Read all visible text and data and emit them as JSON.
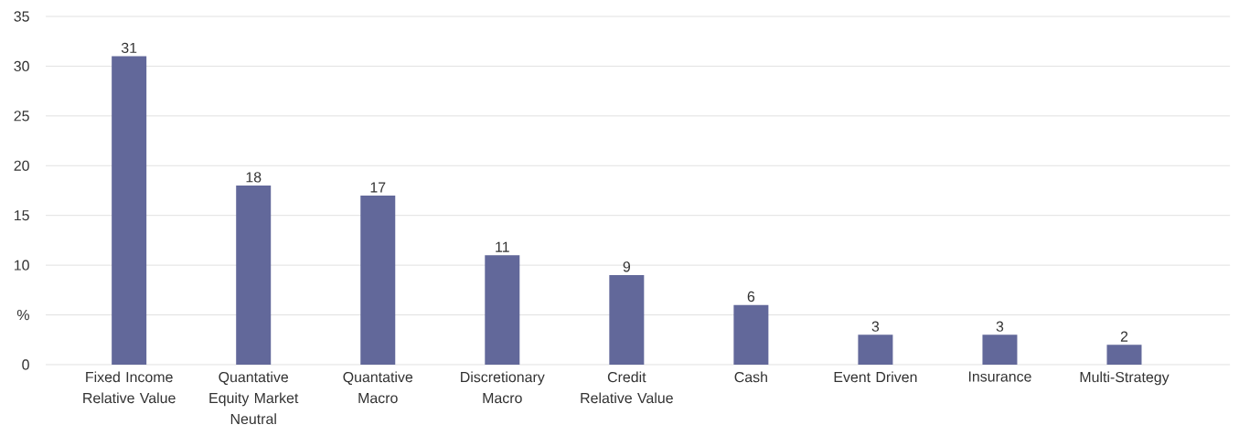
{
  "chart_data": {
    "type": "bar",
    "categories": [
      "Fixed Income Relative Value",
      "Quantative Equity Market Neutral",
      "Quantative Macro",
      "Discretionary Macro",
      "Credit Relative Value",
      "Cash",
      "Event Driven",
      "Insurance",
      "Multi-Strategy"
    ],
    "values": [
      31,
      18,
      17,
      11,
      9,
      6,
      3,
      3,
      2
    ],
    "color": "#62689a",
    "ylim": [
      0,
      35
    ],
    "yticks": [
      0,
      {
        "value": 5,
        "label": "%"
      },
      10,
      15,
      20,
      25,
      30,
      35
    ],
    "grid": "y",
    "data_labels": true
  }
}
